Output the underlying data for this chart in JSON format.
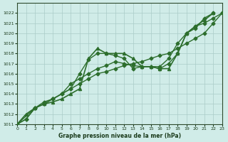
{
  "title": "Graphe pression niveau de la mer (hPa)",
  "background_color": "#d0ece8",
  "grid_color": "#aaccc8",
  "line_color": "#2d6e2d",
  "xlim": [
    0,
    23
  ],
  "ylim": [
    1011,
    1023
  ],
  "xticks": [
    0,
    1,
    2,
    3,
    4,
    5,
    6,
    7,
    8,
    9,
    10,
    11,
    12,
    13,
    14,
    15,
    16,
    17,
    18,
    19,
    20,
    21,
    22,
    23
  ],
  "yticks": [
    1011,
    1012,
    1013,
    1014,
    1015,
    1016,
    1017,
    1018,
    1019,
    1020,
    1021,
    1022
  ],
  "series": [
    {
      "x": [
        0,
        1,
        2,
        3,
        4,
        5,
        6,
        7,
        8,
        9,
        10,
        11,
        12,
        13,
        14,
        15,
        16,
        17,
        18,
        19,
        20,
        21,
        22
      ],
      "y": [
        1011,
        1012,
        1012.6,
        1013,
        1013.2,
        1013.5,
        1014,
        1014.5,
        1017.5,
        1018.5,
        1018,
        1018,
        1018,
        1017.5,
        1016.7,
        1016.7,
        1016.5,
        1016.5,
        1018,
        1020,
        1020.7,
        1021.3,
        1022
      ],
      "marker": "^",
      "markersize": 3,
      "linewidth": 1.2
    },
    {
      "x": [
        0,
        1,
        2,
        3,
        4,
        5,
        6,
        7,
        8,
        9,
        10,
        11,
        12,
        13,
        14,
        15,
        16,
        17,
        18,
        19,
        20,
        21,
        22,
        23
      ],
      "y": [
        1011,
        1011.5,
        1012.6,
        1013,
        1013.5,
        1014,
        1014.5,
        1015,
        1015.5,
        1016,
        1016.2,
        1016.5,
        1016.8,
        1017,
        1017.2,
        1017.5,
        1017.8,
        1018,
        1018.5,
        1019,
        1019.5,
        1020,
        1021,
        1022
      ],
      "marker": "D",
      "markersize": 2.5,
      "linewidth": 1.0
    },
    {
      "x": [
        0,
        2,
        3,
        4,
        5,
        6,
        7,
        8,
        9,
        10,
        11,
        12,
        13,
        14,
        15,
        16,
        17,
        18,
        19,
        20,
        21,
        22
      ],
      "y": [
        1011,
        1012.6,
        1013,
        1013.5,
        1014,
        1014.5,
        1016,
        1017.4,
        1018,
        1018,
        1017.8,
        1017.5,
        1016.5,
        1016.7,
        1016.7,
        1016.5,
        1017,
        1018,
        1020,
        1020.5,
        1021.5,
        1022
      ],
      "marker": "D",
      "markersize": 2.5,
      "linewidth": 1.0
    },
    {
      "x": [
        0,
        1,
        2,
        3,
        4,
        5,
        6,
        7,
        8,
        9,
        10,
        11,
        12,
        13,
        14,
        15,
        16,
        17,
        18,
        19,
        20,
        21,
        22,
        23
      ],
      "y": [
        1011,
        1011.5,
        1012.6,
        1013.2,
        1013.5,
        1014,
        1015,
        1015.5,
        1016,
        1016.5,
        1016.8,
        1017.2,
        1017,
        1016.8,
        1016.7,
        1016.7,
        1016.7,
        1017.5,
        1019,
        1020,
        1020.7,
        1021,
        1021.5,
        1022
      ],
      "marker": "D",
      "markersize": 2.5,
      "linewidth": 1.0
    }
  ]
}
